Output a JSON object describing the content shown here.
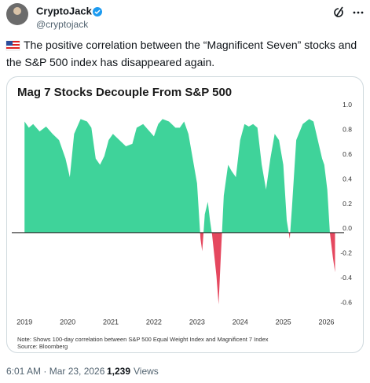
{
  "tweet": {
    "name": "CryptoJack",
    "handle": "@cryptojack",
    "text": "The positive correlation between the “Magnificent Seven” stocks and the S&P 500 index has disappeared again.",
    "time": "6:01 AM · Mar 23, 2026 ·",
    "views": "1,239",
    "views_label": "Views"
  },
  "chart_data": {
    "type": "area",
    "title": "Mag 7 Stocks Decouple From S&P 500",
    "note": "Note: Shows 100-day correlation between S&P 500 Equal Weight Index and Magnificent 7 Index",
    "source": "Source: Bloomberg",
    "color": "#3fd39a",
    "negative_color": "#e5485f",
    "x": [
      2019.0,
      2019.1,
      2019.2,
      2019.35,
      2019.5,
      2019.65,
      2019.8,
      2019.95,
      2020.05,
      2020.15,
      2020.3,
      2020.45,
      2020.55,
      2020.65,
      2020.75,
      2020.85,
      2020.95,
      2021.05,
      2021.2,
      2021.35,
      2021.5,
      2021.6,
      2021.75,
      2021.9,
      2022.0,
      2022.1,
      2022.2,
      2022.35,
      2022.5,
      2022.6,
      2022.7,
      2022.8,
      2022.9,
      2023.0,
      2023.08,
      2023.12,
      2023.18,
      2023.25,
      2023.3,
      2023.35,
      2023.45,
      2023.5,
      2023.55,
      2023.62,
      2023.72,
      2023.8,
      2023.9,
      2024.0,
      2024.1,
      2024.2,
      2024.3,
      2024.4,
      2024.5,
      2024.6,
      2024.7,
      2024.8,
      2024.9,
      2025.0,
      2025.08,
      2025.15,
      2025.2,
      2025.3,
      2025.45,
      2025.6,
      2025.7,
      2025.8,
      2025.9,
      2025.95,
      2026.02,
      2026.08,
      2026.15,
      2026.2
    ],
    "values": [
      0.9,
      0.85,
      0.88,
      0.82,
      0.86,
      0.8,
      0.75,
      0.6,
      0.45,
      0.8,
      0.92,
      0.9,
      0.85,
      0.6,
      0.55,
      0.62,
      0.75,
      0.8,
      0.75,
      0.7,
      0.72,
      0.85,
      0.88,
      0.82,
      0.78,
      0.88,
      0.92,
      0.9,
      0.85,
      0.85,
      0.9,
      0.8,
      0.6,
      0.4,
      -0.05,
      -0.15,
      0.15,
      0.25,
      0.1,
      -0.02,
      -0.35,
      -0.58,
      -0.2,
      0.3,
      0.55,
      0.5,
      0.45,
      0.75,
      0.88,
      0.86,
      0.88,
      0.85,
      0.55,
      0.35,
      0.6,
      0.8,
      0.75,
      0.55,
      0.1,
      -0.05,
      0.2,
      0.75,
      0.88,
      0.92,
      0.9,
      0.75,
      0.6,
      0.55,
      0.35,
      0.0,
      -0.2,
      -0.32
    ],
    "xlim": [
      2018.85,
      2026.3
    ],
    "xticks": [
      2019,
      2020,
      2021,
      2022,
      2023,
      2024,
      2025,
      2026
    ],
    "ylim": [
      -0.65,
      1.05
    ],
    "yticks": [
      {
        "value": 1,
        "label": "1.0"
      },
      0.8,
      0.6,
      0.4,
      0.2,
      {
        "value": 0,
        "label": "0.0"
      },
      -0.2,
      -0.4,
      -0.6
    ],
    "grid": false
  }
}
